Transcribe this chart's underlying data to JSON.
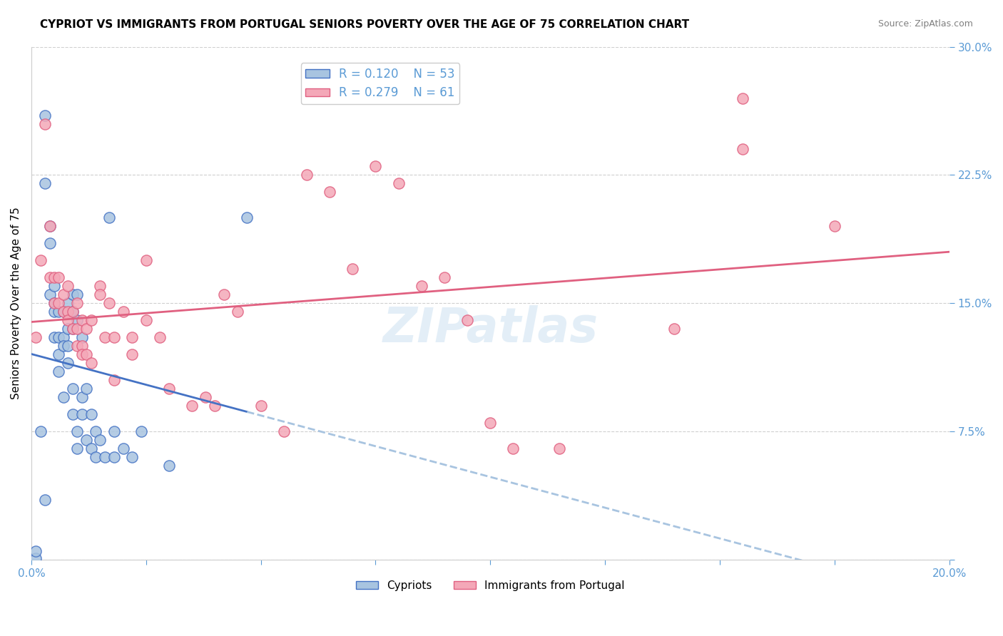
{
  "title": "CYPRIOT VS IMMIGRANTS FROM PORTUGAL SENIORS POVERTY OVER THE AGE OF 75 CORRELATION CHART",
  "source": "Source: ZipAtlas.com",
  "ylabel": "Seniors Poverty Over the Age of 75",
  "xlim": [
    0.0,
    0.2
  ],
  "ylim": [
    0.0,
    0.3
  ],
  "legend_r_blue": "R = 0.120",
  "legend_n_blue": "N = 53",
  "legend_r_pink": "R = 0.279",
  "legend_n_pink": "N = 61",
  "legend_label_blue": "Cypriots",
  "legend_label_pink": "Immigrants from Portugal",
  "blue_color": "#a8c4e0",
  "pink_color": "#f4a8b8",
  "blue_line_color": "#4472c4",
  "pink_line_color": "#e06080",
  "blue_dash_color": "#a8c4e0",
  "axis_color": "#5b9bd5",
  "grid_color": "#d0d0d0",
  "watermark": "ZIPatlas",
  "blue_x": [
    0.001,
    0.002,
    0.003,
    0.003,
    0.004,
    0.004,
    0.004,
    0.005,
    0.005,
    0.005,
    0.005,
    0.006,
    0.006,
    0.006,
    0.006,
    0.007,
    0.007,
    0.007,
    0.007,
    0.008,
    0.008,
    0.008,
    0.008,
    0.009,
    0.009,
    0.009,
    0.009,
    0.009,
    0.01,
    0.01,
    0.01,
    0.01,
    0.011,
    0.011,
    0.011,
    0.012,
    0.012,
    0.013,
    0.013,
    0.014,
    0.014,
    0.015,
    0.016,
    0.017,
    0.018,
    0.018,
    0.02,
    0.022,
    0.024,
    0.03,
    0.047,
    0.003,
    0.001
  ],
  "blue_y": [
    0.001,
    0.075,
    0.26,
    0.22,
    0.195,
    0.185,
    0.155,
    0.16,
    0.15,
    0.145,
    0.13,
    0.145,
    0.13,
    0.12,
    0.11,
    0.145,
    0.13,
    0.125,
    0.095,
    0.15,
    0.135,
    0.125,
    0.115,
    0.155,
    0.145,
    0.135,
    0.1,
    0.085,
    0.155,
    0.14,
    0.075,
    0.065,
    0.13,
    0.095,
    0.085,
    0.1,
    0.07,
    0.085,
    0.065,
    0.075,
    0.06,
    0.07,
    0.06,
    0.2,
    0.075,
    0.06,
    0.065,
    0.06,
    0.075,
    0.055,
    0.2,
    0.035,
    0.005
  ],
  "pink_x": [
    0.001,
    0.002,
    0.003,
    0.004,
    0.004,
    0.005,
    0.005,
    0.006,
    0.006,
    0.007,
    0.007,
    0.008,
    0.008,
    0.008,
    0.009,
    0.009,
    0.01,
    0.01,
    0.01,
    0.011,
    0.011,
    0.011,
    0.012,
    0.012,
    0.013,
    0.013,
    0.015,
    0.015,
    0.016,
    0.017,
    0.018,
    0.018,
    0.02,
    0.022,
    0.022,
    0.025,
    0.025,
    0.028,
    0.03,
    0.035,
    0.038,
    0.04,
    0.042,
    0.045,
    0.05,
    0.055,
    0.06,
    0.065,
    0.07,
    0.075,
    0.08,
    0.085,
    0.09,
    0.095,
    0.1,
    0.105,
    0.115,
    0.14,
    0.155,
    0.155,
    0.175
  ],
  "pink_y": [
    0.13,
    0.175,
    0.255,
    0.195,
    0.165,
    0.165,
    0.15,
    0.165,
    0.15,
    0.155,
    0.145,
    0.16,
    0.145,
    0.14,
    0.145,
    0.135,
    0.15,
    0.135,
    0.125,
    0.14,
    0.125,
    0.12,
    0.135,
    0.12,
    0.14,
    0.115,
    0.16,
    0.155,
    0.13,
    0.15,
    0.13,
    0.105,
    0.145,
    0.13,
    0.12,
    0.175,
    0.14,
    0.13,
    0.1,
    0.09,
    0.095,
    0.09,
    0.155,
    0.145,
    0.09,
    0.075,
    0.225,
    0.215,
    0.17,
    0.23,
    0.22,
    0.16,
    0.165,
    0.14,
    0.08,
    0.065,
    0.065,
    0.135,
    0.27,
    0.24,
    0.195
  ]
}
